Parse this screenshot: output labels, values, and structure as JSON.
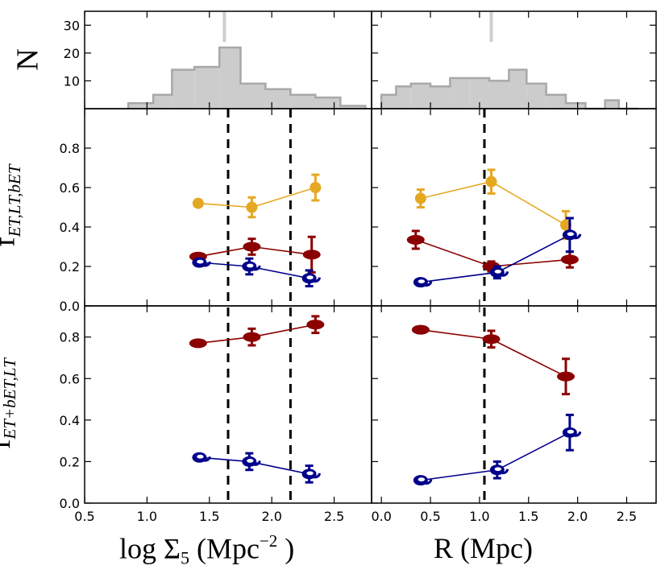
{
  "chart_data": {
    "type": "scatter",
    "colors": {
      "yellow": "#e5a823",
      "red": "#8b0000",
      "blue": "#00008b",
      "hist_fill": "#cccccc",
      "hist_edge": "#a8a8a8",
      "median": "#cfcfcf"
    },
    "x_axis_left": {
      "label_main": "log Σ",
      "label_sub": "5",
      "label_unit_pre": " (Mpc",
      "label_sup": "−2",
      "label_unit_post": " )",
      "range": [
        0.5,
        2.8
      ],
      "ticks": [
        0.5,
        1.0,
        1.5,
        2.0,
        2.5
      ],
      "tick_labels": [
        "0.5",
        "1.0",
        "1.5",
        "2.0",
        "2.5"
      ]
    },
    "x_axis_right": {
      "label": "R (Mpc)",
      "range": [
        -0.1,
        2.8
      ],
      "ticks": [
        0.0,
        0.5,
        1.0,
        1.5,
        2.0,
        2.5
      ],
      "tick_labels": [
        "0.0",
        "0.5",
        "1.0",
        "1.5",
        "2.0",
        "2.5"
      ]
    },
    "histograms": {
      "ylabel": "N",
      "ylim": [
        0,
        35
      ],
      "yticks": [
        10,
        20,
        30
      ],
      "ytick_labels": [
        "10",
        "20",
        "30"
      ],
      "left": {
        "edges": [
          0.85,
          1.05,
          1.2,
          1.38,
          1.58,
          1.75,
          1.95,
          2.15,
          2.35,
          2.55,
          2.75
        ],
        "counts": [
          2,
          5,
          14,
          15,
          22,
          9,
          7,
          5,
          4,
          1
        ],
        "median": 1.62
      },
      "right": {
        "edges": [
          0.0,
          0.15,
          0.3,
          0.5,
          0.7,
          0.9,
          1.1,
          1.3,
          1.48,
          1.68,
          1.88,
          2.08,
          2.28,
          2.42,
          2.62
        ],
        "counts": [
          5,
          8,
          9,
          8,
          11,
          11,
          10,
          14,
          9,
          5,
          2,
          0,
          3,
          0
        ],
        "median": 1.12
      }
    },
    "middle": {
      "ylabel_main": "f",
      "ylabel_sub": "ET,LT,bET",
      "ylim": [
        0.0,
        1.0
      ],
      "yticks": [
        0.0,
        0.2,
        0.4,
        0.6,
        0.8
      ],
      "ytick_labels": [
        "0.0",
        "0.2",
        "0.4",
        "0.6",
        "0.8"
      ],
      "left": [
        {
          "name": "ET",
          "color": "yellow",
          "marker": "circle",
          "x": [
            1.41,
            1.84,
            2.35
          ],
          "y": [
            0.52,
            0.5,
            0.6
          ],
          "err": [
            0.0,
            0.05,
            0.065
          ]
        },
        {
          "name": "bET",
          "color": "red",
          "marker": "ellipse",
          "x": [
            1.41,
            1.84,
            2.32
          ],
          "y": [
            0.25,
            0.3,
            0.26
          ],
          "err": [
            0.0,
            0.04,
            0.09
          ]
        },
        {
          "name": "LT",
          "color": "blue",
          "marker": "spiral",
          "x": [
            1.42,
            1.82,
            2.3
          ],
          "y": [
            0.22,
            0.2,
            0.14
          ],
          "err": [
            0.0,
            0.04,
            0.04
          ]
        }
      ],
      "right": [
        {
          "name": "ET",
          "color": "yellow",
          "marker": "circle",
          "x": [
            0.4,
            1.12,
            1.88
          ],
          "y": [
            0.545,
            0.63,
            0.41
          ],
          "err": [
            0.045,
            0.06,
            0.07
          ]
        },
        {
          "name": "bET",
          "color": "red",
          "marker": "ellipse",
          "x": [
            0.35,
            1.12,
            1.92
          ],
          "y": [
            0.335,
            0.2,
            0.235
          ],
          "err": [
            0.045,
            0.025,
            0.04
          ]
        },
        {
          "name": "LT",
          "color": "blue",
          "marker": "spiral",
          "x": [
            0.4,
            1.18,
            1.92
          ],
          "y": [
            0.12,
            0.17,
            0.36
          ],
          "err": [
            0.0,
            0.03,
            0.085
          ]
        }
      ]
    },
    "bottom": {
      "ylabel_main": "f",
      "ylabel_sub": "ET+bET,LT",
      "ylim": [
        0.0,
        0.95
      ],
      "yticks": [
        0.0,
        0.2,
        0.4,
        0.6,
        0.8
      ],
      "ytick_labels": [
        "0.0",
        "0.2",
        "0.4",
        "0.6",
        "0.8"
      ],
      "left": [
        {
          "name": "ET+bET",
          "color": "red",
          "marker": "ellipse",
          "x": [
            1.41,
            1.84,
            2.35
          ],
          "y": [
            0.77,
            0.8,
            0.86
          ],
          "err": [
            0.0,
            0.04,
            0.04
          ]
        },
        {
          "name": "LT",
          "color": "blue",
          "marker": "spiral",
          "x": [
            1.42,
            1.82,
            2.3
          ],
          "y": [
            0.22,
            0.2,
            0.14
          ],
          "err": [
            0.0,
            0.04,
            0.04
          ]
        }
      ],
      "right": [
        {
          "name": "ET+bET",
          "color": "red",
          "marker": "ellipse",
          "x": [
            0.4,
            1.12,
            1.88
          ],
          "y": [
            0.835,
            0.79,
            0.61
          ],
          "err": [
            0.0,
            0.04,
            0.085
          ]
        },
        {
          "name": "LT",
          "color": "blue",
          "marker": "spiral",
          "x": [
            0.4,
            1.18,
            1.92
          ],
          "y": [
            0.11,
            0.16,
            0.34
          ],
          "err": [
            0.0,
            0.04,
            0.085
          ]
        }
      ]
    },
    "vlines": {
      "left": [
        1.65,
        2.15
      ],
      "right": [
        1.05
      ]
    }
  }
}
